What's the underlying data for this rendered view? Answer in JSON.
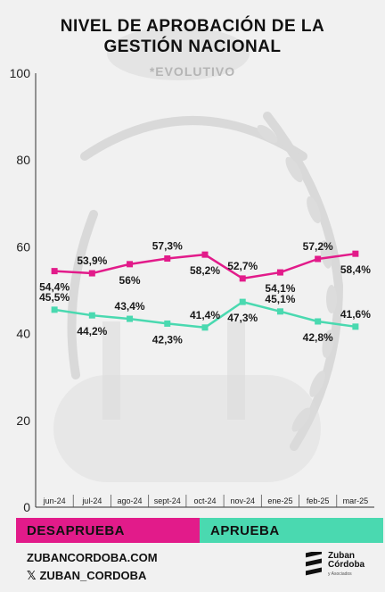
{
  "title_line1": "NIVEL DE APROBACIÓN DE LA",
  "title_line2": "GESTIÓN NACIONAL",
  "subtitle": "*EVOLUTIVO",
  "colors": {
    "desaprueba": "#e21b8a",
    "aprueba": "#4ad9b0",
    "bg": "#f1f1f1",
    "axis": "#333333"
  },
  "chart_data": {
    "type": "line",
    "categories": [
      "jun-24",
      "jul-24",
      "ago-24",
      "sept-24",
      "oct-24",
      "nov-24",
      "ene-25",
      "feb-25",
      "mar-25"
    ],
    "ylim": [
      0,
      100
    ],
    "yticks": [
      0,
      20,
      40,
      60,
      80,
      100
    ],
    "grid": false,
    "legend_placement": "bottom",
    "series": [
      {
        "name": "DESAPRUEBA",
        "values": [
          54.4,
          53.9,
          56,
          57.3,
          58.2,
          52.7,
          54.1,
          57.2,
          58.4
        ],
        "labels": [
          "54,4%",
          "53,9%",
          "56%",
          "57,3%",
          "58,2%",
          "52,7%",
          "54,1%",
          "57,2%",
          "58,4%"
        ],
        "label_pos": [
          "below",
          "above",
          "below",
          "above",
          "below",
          "above",
          "below",
          "above",
          "below"
        ]
      },
      {
        "name": "APRUEBA",
        "values": [
          45.5,
          44.2,
          43.4,
          42.3,
          41.4,
          47.3,
          45.1,
          42.8,
          41.6
        ],
        "labels": [
          "45,5%",
          "44,2%",
          "43,4%",
          "42,3%",
          "41,4%",
          "47,3%",
          "45,1%",
          "42,8%",
          "41,6%"
        ],
        "label_pos": [
          "above",
          "below",
          "above",
          "below",
          "above",
          "below",
          "above",
          "below",
          "above"
        ]
      }
    ]
  },
  "legend": {
    "desaprueba": "DESAPRUEBA",
    "aprueba": "APRUEBA"
  },
  "footer": {
    "website": "ZUBANCORDOBA.COM",
    "handle": "ZUBAN_CORDOBA",
    "x_icon": "𝕏"
  },
  "brand": {
    "line1": "Zuban",
    "line2": "Córdoba",
    "line3": "y Asociados"
  }
}
